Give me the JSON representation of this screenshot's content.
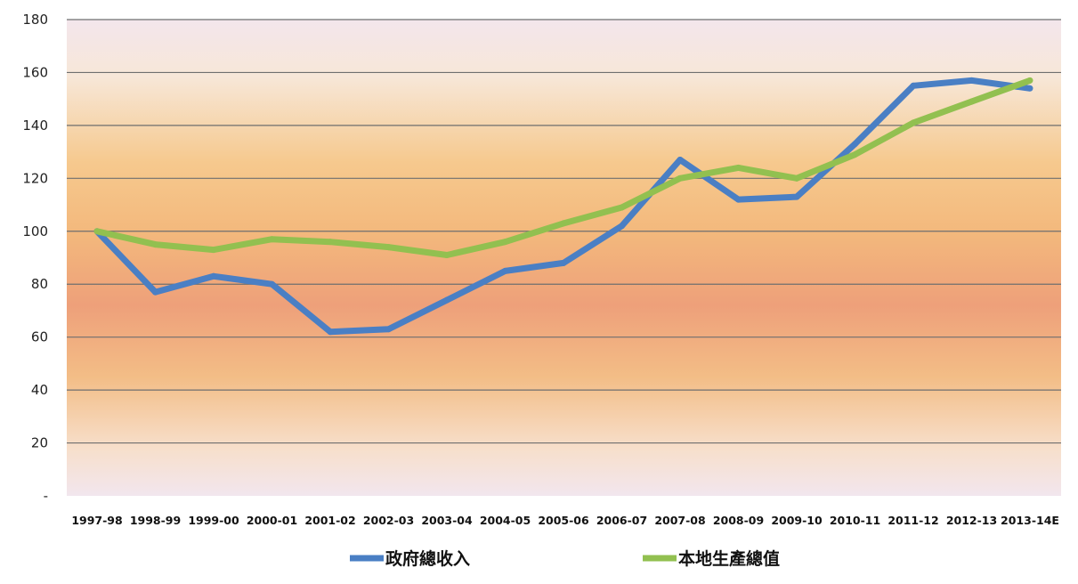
{
  "chart_data": {
    "type": "line",
    "title": "",
    "xlabel": "",
    "ylabel": "",
    "categories": [
      "1997-98",
      "1998-99",
      "1999-00",
      "2000-01",
      "2001-02",
      "2002-03",
      "2003-04",
      "2004-05",
      "2005-06",
      "2006-07",
      "2007-08",
      "2008-09",
      "2009-10",
      "2010-11",
      "2011-12",
      "2012-13",
      "2013-14E"
    ],
    "ylim": [
      0,
      180
    ],
    "yticks": [
      {
        "value": 0,
        "label": "-"
      },
      {
        "value": 20,
        "label": "20"
      },
      {
        "value": 40,
        "label": "40"
      },
      {
        "value": 60,
        "label": "60"
      },
      {
        "value": 80,
        "label": "80"
      },
      {
        "value": 100,
        "label": "100"
      },
      {
        "value": 120,
        "label": "120"
      },
      {
        "value": 140,
        "label": "140"
      },
      {
        "value": 160,
        "label": "160"
      },
      {
        "value": 180,
        "label": "180"
      }
    ],
    "grid": true,
    "legend_position": "bottom",
    "series": [
      {
        "name": "政府總收入",
        "color": "#4a7fc4",
        "values": [
          100,
          77,
          83,
          80,
          62,
          63,
          74,
          85,
          88,
          102,
          127,
          112,
          113,
          133,
          155,
          157,
          154
        ]
      },
      {
        "name": "本地生產總值",
        "color": "#92c050",
        "values": [
          100,
          95,
          93,
          97,
          96,
          94,
          91,
          96,
          103,
          109,
          120,
          124,
          120,
          129,
          141,
          149,
          157
        ]
      }
    ]
  }
}
